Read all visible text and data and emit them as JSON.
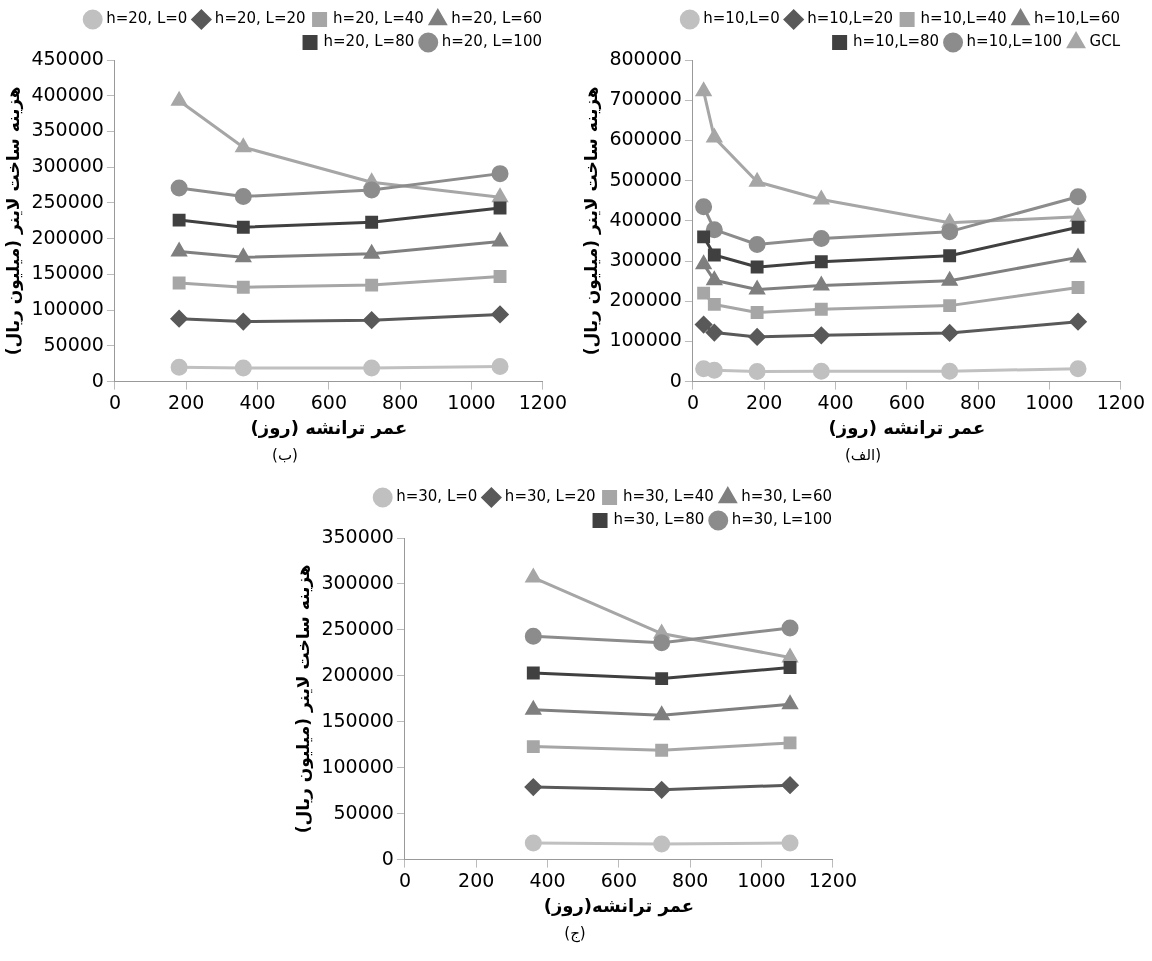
{
  "chart_data": [
    {
      "type": "line",
      "xlabel": "عمر ترانشه (روز)",
      "ylabel": "هزینه ساخت لاینر (میلیون ریال)",
      "xlim": [
        0,
        1200
      ],
      "xticks": [
        0,
        200,
        400,
        600,
        800,
        1000,
        1200
      ],
      "ylim": [
        0,
        450000
      ],
      "yticks": [
        0,
        50000,
        100000,
        150000,
        200000,
        250000,
        300000,
        350000,
        400000,
        450000
      ],
      "legend": "top right",
      "annotations": [
        "(ب)"
      ],
      "x": [
        180,
        360,
        720,
        1080
      ],
      "series": [
        {
          "name": "h=20, L=0",
          "color": "#c0c0c0",
          "marker": "circle",
          "values": [
            20000,
            19000,
            19000,
            21000
          ]
        },
        {
          "name": "h=20, L=20",
          "color": "#595959",
          "marker": "diamond",
          "values": [
            88000,
            84000,
            86000,
            94000
          ]
        },
        {
          "name": "h=20, L=40",
          "color": "#a6a6a6",
          "marker": "square",
          "values": [
            138000,
            132000,
            135000,
            147000
          ]
        },
        {
          "name": "h=20, L=60",
          "color": "#7f7f7f",
          "marker": "triangle",
          "values": [
            182000,
            174000,
            179000,
            196000
          ]
        },
        {
          "name": "h=20, L=80",
          "color": "#404040",
          "marker": "square",
          "values": [
            226000,
            216000,
            223000,
            243000
          ]
        },
        {
          "name": "h=20, L=100",
          "color": "#8c8c8c",
          "marker": "circle",
          "values": [
            271000,
            259000,
            268000,
            291000
          ]
        },
        {
          "color": "#a6a6a6",
          "marker": "triangle",
          "values": [
            393000,
            328000,
            279000,
            258000
          ]
        }
      ]
    },
    {
      "type": "line",
      "xlabel": "عمر ترانشه (روز)",
      "ylabel": "هزینه ساخت لاینر (میلیون ریال)",
      "xlim": [
        0,
        1200
      ],
      "xticks": [
        0,
        200,
        400,
        600,
        800,
        1000,
        1200
      ],
      "ylim": [
        0,
        800000
      ],
      "yticks": [
        0,
        100000,
        200000,
        300000,
        400000,
        500000,
        600000,
        700000,
        800000
      ],
      "legend": "top right",
      "annotations": [
        "(الف)"
      ],
      "x": [
        30,
        60,
        180,
        360,
        720,
        1080
      ],
      "series": [
        {
          "name": "h=10,L=0",
          "color": "#c0c0c0",
          "marker": "circle",
          "values": [
            32000,
            28000,
            25000,
            26000,
            26000,
            32000
          ]
        },
        {
          "name": "h=10,L=20",
          "color": "#595959",
          "marker": "diamond",
          "values": [
            142000,
            122000,
            111000,
            115000,
            121000,
            149000
          ]
        },
        {
          "name": "h=10,L=40",
          "color": "#a6a6a6",
          "marker": "square",
          "values": [
            220000,
            192000,
            172000,
            180000,
            189000,
            234000
          ]
        },
        {
          "name": "h=10,L=60",
          "color": "#7f7f7f",
          "marker": "triangle",
          "values": [
            292000,
            252000,
            229000,
            239000,
            251000,
            309000
          ]
        },
        {
          "name": "h=10,L=80",
          "color": "#404040",
          "marker": "square",
          "values": [
            360000,
            315000,
            285000,
            298000,
            313000,
            384000
          ]
        },
        {
          "name": "h=10,L=100",
          "color": "#8c8c8c",
          "marker": "circle",
          "values": [
            435000,
            378000,
            341000,
            356000,
            373000,
            460000
          ]
        },
        {
          "name": "GCL",
          "color": "#a6a6a6",
          "marker": "triangle",
          "values": [
            722000,
            607000,
            497000,
            453000,
            395000,
            410000
          ]
        }
      ]
    },
    {
      "type": "line",
      "xlabel": "عمر ترانشه(روز)",
      "ylabel": "هزینه ساخت لاینر (میلیون ریال)",
      "xlim": [
        0,
        1200
      ],
      "xticks": [
        0,
        200,
        400,
        600,
        800,
        1000,
        1200
      ],
      "ylim": [
        0,
        350000
      ],
      "yticks": [
        0,
        50000,
        100000,
        150000,
        200000,
        250000,
        300000,
        350000
      ],
      "legend": "top right",
      "annotations": [
        "(ج)"
      ],
      "x": [
        360,
        720,
        1080
      ],
      "series": [
        {
          "name": "h=30, L=0",
          "color": "#c0c0c0",
          "marker": "circle",
          "values": [
            18000,
            17000,
            18000
          ]
        },
        {
          "name": "h=30, L=20",
          "color": "#595959",
          "marker": "diamond",
          "values": [
            79000,
            76000,
            81000
          ]
        },
        {
          "name": "h=30, L=40",
          "color": "#a6a6a6",
          "marker": "square",
          "values": [
            123000,
            119000,
            127000
          ]
        },
        {
          "name": "h=30, L=60",
          "color": "#7f7f7f",
          "marker": "triangle",
          "values": [
            163000,
            157000,
            169000
          ]
        },
        {
          "name": "h=30, L=80",
          "color": "#404040",
          "marker": "square",
          "values": [
            203000,
            197000,
            209000
          ]
        },
        {
          "name": "h=30, L=100",
          "color": "#8c8c8c",
          "marker": "circle",
          "values": [
            243000,
            236000,
            252000
          ]
        },
        {
          "color": "#a6a6a6",
          "marker": "triangle",
          "values": [
            307000,
            246000,
            220000
          ]
        }
      ]
    }
  ]
}
